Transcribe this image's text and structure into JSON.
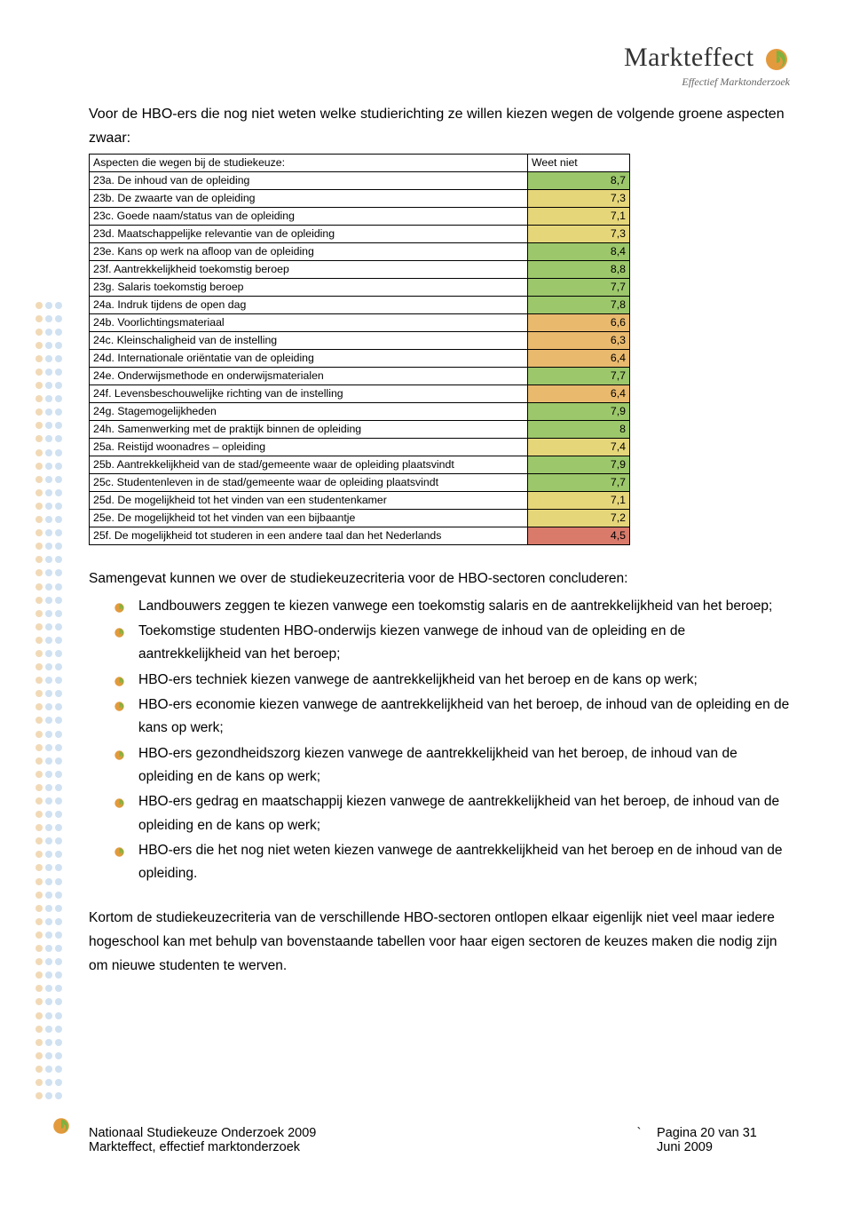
{
  "logo": {
    "brand": "Markteffect",
    "tagline": "Effectief Marktonderzoek"
  },
  "intro": "Voor de HBO-ers die nog niet weten welke studierichting ze willen kiezen wegen de volgende groene aspecten zwaar:",
  "table": {
    "header_left": "Aspecten die wegen bij de studiekeuze:",
    "header_right": "Weet niet",
    "colors": {
      "green": "#9cc76b",
      "yellow": "#e6d67a",
      "orange": "#e9b96e",
      "red": "#d97a6b"
    },
    "rows": [
      {
        "label": "23a. De inhoud van de opleiding",
        "val": "8,7",
        "color": "green"
      },
      {
        "label": "23b. De zwaarte van de opleiding",
        "val": "7,3",
        "color": "yellow"
      },
      {
        "label": "23c. Goede naam/status van de opleiding",
        "val": "7,1",
        "color": "yellow"
      },
      {
        "label": "23d. Maatschappelijke relevantie van de opleiding",
        "val": "7,3",
        "color": "yellow"
      },
      {
        "label": "23e. Kans op werk na afloop van de opleiding",
        "val": "8,4",
        "color": "green"
      },
      {
        "label": "23f. Aantrekkelijkheid toekomstig beroep",
        "val": "8,8",
        "color": "green"
      },
      {
        "label": "23g. Salaris toekomstig beroep",
        "val": "7,7",
        "color": "green"
      },
      {
        "label": "24a. Indruk tijdens de open dag",
        "val": "7,8",
        "color": "green"
      },
      {
        "label": "24b. Voorlichtingsmateriaal",
        "val": "6,6",
        "color": "orange"
      },
      {
        "label": "24c. Kleinschaligheid van de instelling",
        "val": "6,3",
        "color": "orange"
      },
      {
        "label": "24d. Internationale oriëntatie van de opleiding",
        "val": "6,4",
        "color": "orange"
      },
      {
        "label": "24e. Onderwijsmethode en onderwijsmaterialen",
        "val": "7,7",
        "color": "green"
      },
      {
        "label": "24f. Levensbeschouwelijke richting van de instelling",
        "val": "6,4",
        "color": "orange"
      },
      {
        "label": "24g. Stagemogelijkheden",
        "val": "7,9",
        "color": "green"
      },
      {
        "label": "24h. Samenwerking met de praktijk binnen de opleiding",
        "val": "8",
        "color": "green"
      },
      {
        "label": "25a. Reistijd woonadres – opleiding",
        "val": "7,4",
        "color": "yellow"
      },
      {
        "label": "25b. Aantrekkelijkheid van de stad/gemeente waar de opleiding plaatsvindt",
        "val": "7,9",
        "color": "green"
      },
      {
        "label": "25c. Studentenleven in de stad/gemeente waar de opleiding plaatsvindt",
        "val": "7,7",
        "color": "green"
      },
      {
        "label": "25d. De mogelijkheid tot het vinden van een studentenkamer",
        "val": "7,1",
        "color": "yellow"
      },
      {
        "label": "25e. De mogelijkheid tot het vinden van een bijbaantje",
        "val": "7,2",
        "color": "yellow"
      },
      {
        "label": "25f. De mogelijkheid tot studeren in een andere taal dan het Nederlands",
        "val": "4,5",
        "color": "red"
      }
    ]
  },
  "summary_intro": "Samengevat kunnen we over de studiekeuzecriteria voor de HBO-sectoren concluderen:",
  "bullets": [
    "Landbouwers zeggen te kiezen vanwege een toekomstig salaris en de aantrekkelijkheid van het beroep;",
    "Toekomstige studenten HBO-onderwijs kiezen vanwege de inhoud van de opleiding en de aantrekkelijkheid van het beroep;",
    "HBO-ers techniek kiezen vanwege de aantrekkelijkheid van het beroep en de kans op werk;",
    "HBO-ers economie kiezen vanwege de aantrekkelijkheid van het beroep, de inhoud van de opleiding en de kans op werk;",
    "HBO-ers gezondheidszorg kiezen vanwege de aantrekkelijkheid van het beroep, de inhoud van de opleiding en de kans op werk;",
    "HBO-ers gedrag en maatschappij kiezen vanwege de aantrekkelijkheid van het beroep, de inhoud van de opleiding en de kans op werk;",
    "HBO-ers die het nog niet weten kiezen vanwege de aantrekkelijkheid van het beroep en de inhoud van de opleiding."
  ],
  "closing": "Kortom de studiekeuzecriteria van de verschillende HBO-sectoren ontlopen elkaar eigenlijk niet veel maar iedere hogeschool kan met behulp van bovenstaande tabellen voor haar eigen sectoren de keuzes maken die nodig zijn om nieuwe studenten te werven.",
  "footer": {
    "line1_left": "Nationaal Studiekeuze Onderzoek 2009",
    "line1_mid": "`",
    "line1_right": "Pagina 20 van 31",
    "line2_left": "Markteffect, effectief marktonderzoek",
    "line2_right": "Juni 2009"
  },
  "decor": {
    "dot_colors": [
      "#e6b97a",
      "#a9c9e6",
      "#a9c9e6"
    ],
    "dot_rows": 60,
    "swirl_orange": "#e39a3c",
    "swirl_green": "#7fb23f"
  }
}
